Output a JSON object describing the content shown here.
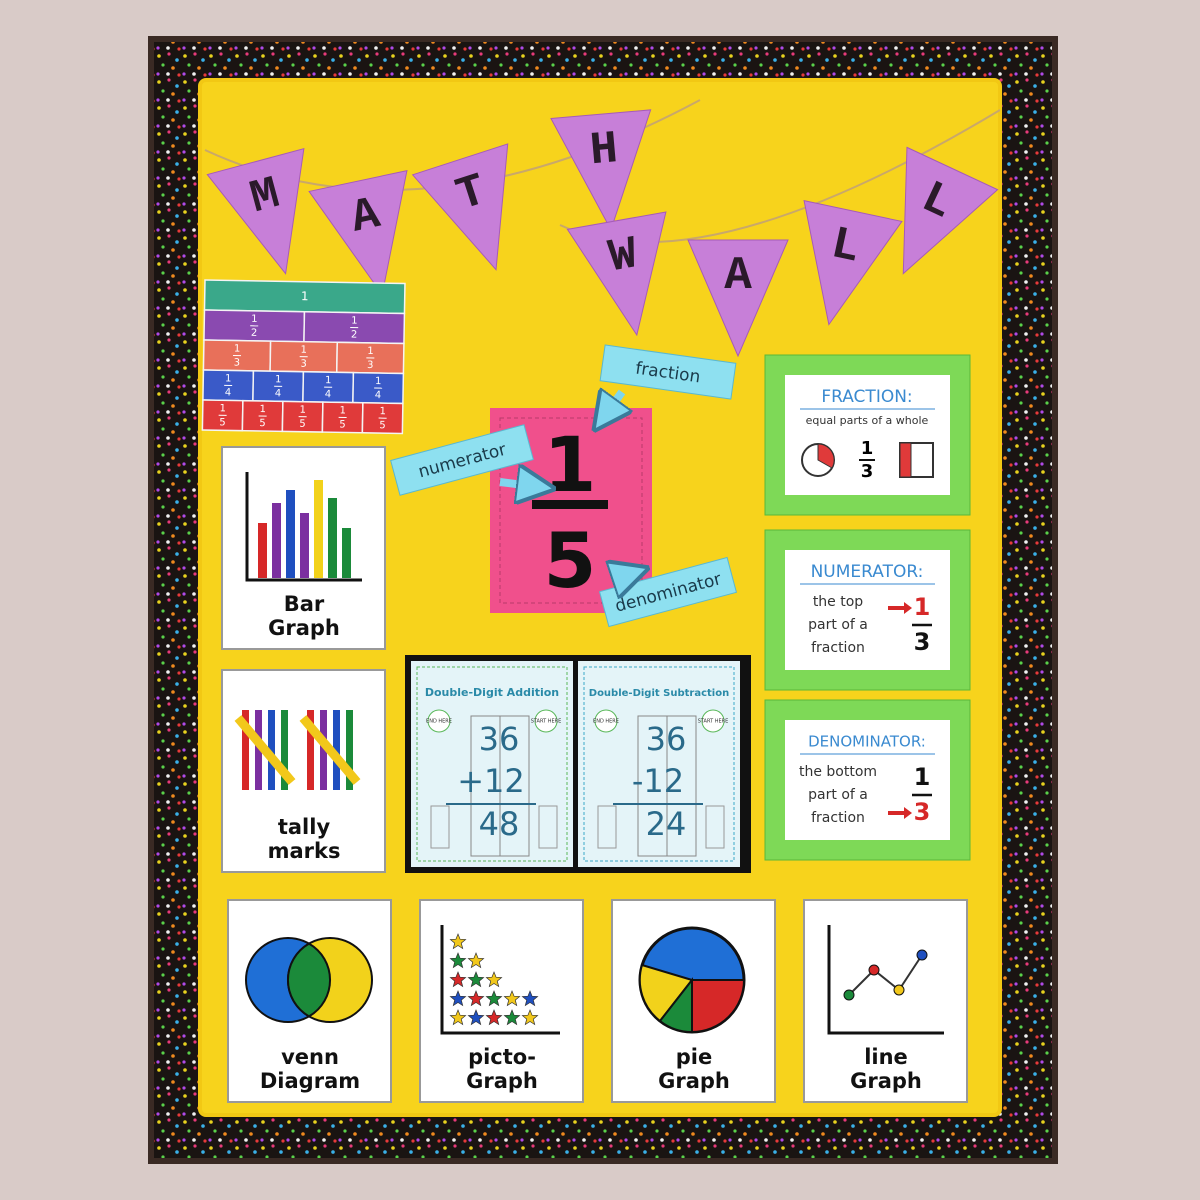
{
  "banner": {
    "letters": [
      "M",
      "A",
      "T",
      "H",
      "W",
      "A",
      "L",
      "L"
    ]
  },
  "fraction_strips": {
    "rows": [
      [
        {
          "numerator": "1"
        }
      ],
      [
        {
          "numerator": "1",
          "denominator": "2"
        },
        {
          "numerator": "1",
          "denominator": "2"
        }
      ],
      [
        {
          "numerator": "1",
          "denominator": "3"
        },
        {
          "numerator": "1",
          "denominator": "3"
        },
        {
          "numerator": "1",
          "denominator": "3"
        }
      ],
      [
        {
          "numerator": "1",
          "denominator": "4"
        },
        {
          "numerator": "1",
          "denominator": "4"
        },
        {
          "numerator": "1",
          "denominator": "4"
        },
        {
          "numerator": "1",
          "denominator": "4"
        }
      ],
      [
        {
          "numerator": "1",
          "denominator": "5"
        },
        {
          "numerator": "1",
          "denominator": "5"
        },
        {
          "numerator": "1",
          "denominator": "5"
        },
        {
          "numerator": "1",
          "denominator": "5"
        },
        {
          "numerator": "1",
          "denominator": "5"
        }
      ]
    ]
  },
  "fraction_poster": {
    "fraction_label": "fraction",
    "numerator_label": "numerator",
    "denominator_label": "denominator",
    "numerator": "1",
    "denominator": "5"
  },
  "vocabulary_cards": [
    {
      "title": "FRACTION:",
      "definition": [
        "equal parts of a whole"
      ],
      "numerator": "1",
      "denominator": "3"
    },
    {
      "title": "NUMERATOR:",
      "definition": [
        "the top",
        "part of a",
        "fraction"
      ],
      "numerator": "1",
      "denominator": "3"
    },
    {
      "title": "DENOMINATOR:",
      "definition": [
        "the bottom",
        "part of a",
        "fraction"
      ],
      "numerator": "1",
      "denominator": "3"
    }
  ],
  "graph_cards": [
    {
      "lines": [
        "Bar",
        "Graph"
      ]
    },
    {
      "lines": [
        "tally",
        "marks"
      ]
    },
    {
      "lines": [
        "venn",
        "Diagram"
      ]
    },
    {
      "lines": [
        "picto-",
        "Graph"
      ]
    },
    {
      "lines": [
        "pie",
        "Graph"
      ]
    },
    {
      "lines": [
        "line",
        "Graph"
      ]
    }
  ],
  "arithmetic_posters": [
    {
      "title": "Double-Digit Addition",
      "top": "36",
      "bottom": "+12",
      "answer": "48",
      "end": "END HERE",
      "start": "START HERE"
    },
    {
      "title": "Double-Digit Subtraction",
      "top": "36",
      "bottom": "-12",
      "answer": "24",
      "end": "END HERE",
      "start": "START HERE"
    }
  ]
}
